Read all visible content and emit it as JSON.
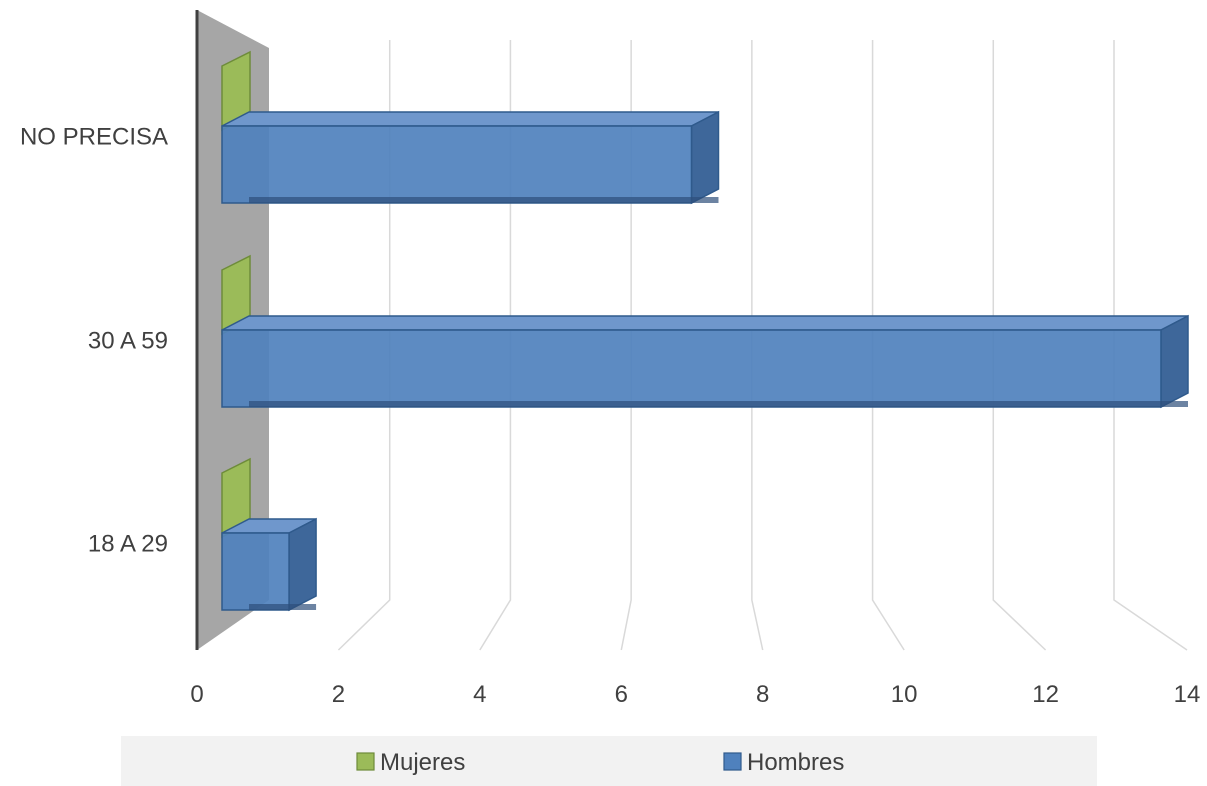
{
  "chart_data": {
    "type": "bar",
    "orientation": "horizontal",
    "style": "3d",
    "categories": [
      "18 A 29",
      "30 A 59",
      "NO PRECISA"
    ],
    "series": [
      {
        "name": "Mujeres",
        "values": [
          0,
          0,
          0
        ],
        "color": "#9BBB59",
        "edge_color": "#6E8C3A"
      },
      {
        "name": "Hombres",
        "values": [
          1,
          14,
          7
        ],
        "color": "#4F81BD",
        "edge_color": "#2F5A8C"
      }
    ],
    "x_ticks": [
      "0",
      "2",
      "4",
      "6",
      "8",
      "10",
      "12",
      "14"
    ],
    "xlim": [
      0,
      14
    ],
    "grid": true,
    "legend_position": "bottom"
  },
  "colors": {
    "wall": "#A6A6A6",
    "gridline": "#D9D9D9",
    "axis": "#404040",
    "legend_bg": "#F2F2F2"
  }
}
